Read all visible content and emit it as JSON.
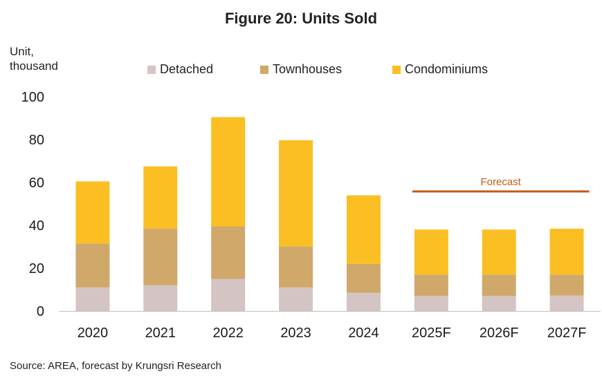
{
  "chart_data": {
    "type": "bar",
    "stacked": true,
    "title": "Figure 20: Units Sold",
    "ylabel": "Unit, thousand",
    "ylim": [
      0,
      100
    ],
    "yticks": [
      0,
      20,
      40,
      60,
      80,
      100
    ],
    "categories": [
      "2020",
      "2021",
      "2022",
      "2023",
      "2024",
      "2025F",
      "2026F",
      "2027F"
    ],
    "series": [
      {
        "name": "Detached",
        "color": "#d5c4c4",
        "values": [
          11,
          12,
          15,
          11,
          8.5,
          7,
          7,
          7.2
        ]
      },
      {
        "name": "Townhouses",
        "color": "#cfa86a",
        "values": [
          20.5,
          26.5,
          24.5,
          19.2,
          13.5,
          10,
          10,
          9.8
        ]
      },
      {
        "name": "Condominiums",
        "color": "#fbbf24",
        "values": [
          29,
          29,
          51,
          49.5,
          32,
          21,
          21,
          21.4
        ]
      }
    ],
    "annotation": {
      "text": "Forecast",
      "color": "#c55a11"
    },
    "legend_position": "top",
    "grid": false
  },
  "source_text": "Source: AREA, forecast by Krungsri Research"
}
